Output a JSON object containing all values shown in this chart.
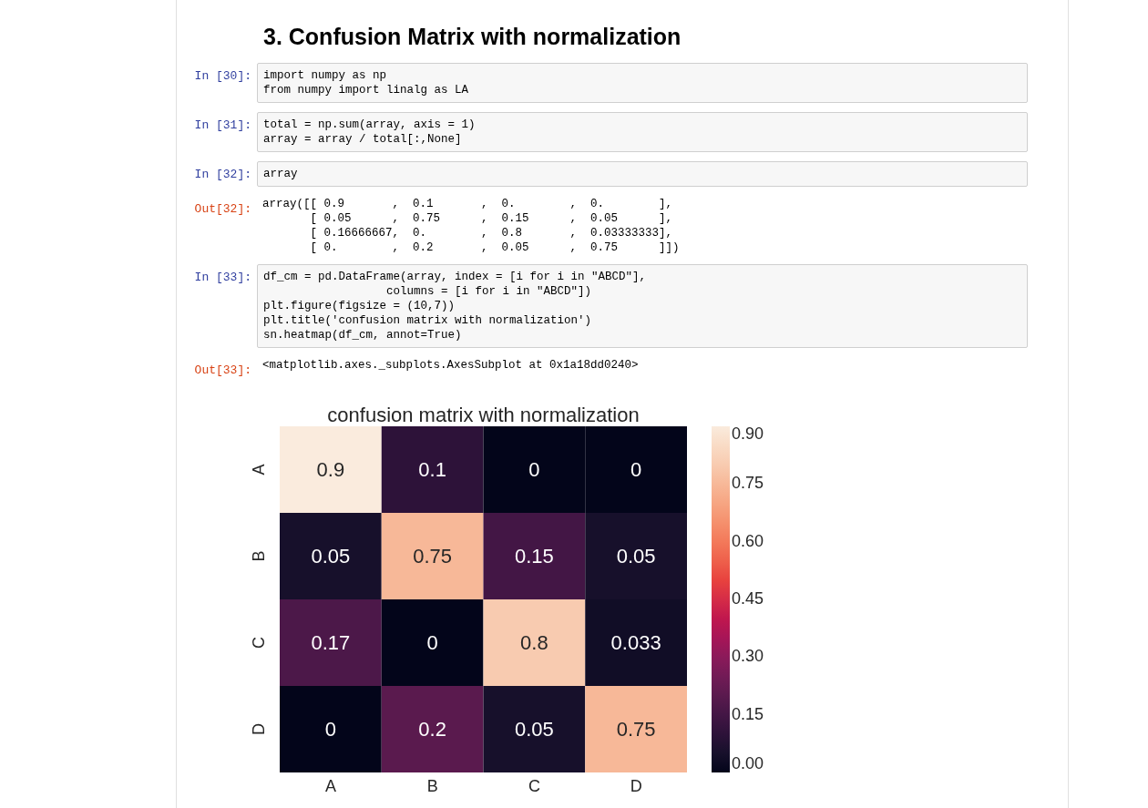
{
  "chart_data": {
    "type": "heatmap",
    "title": "confusion matrix with normalization",
    "categories": [
      "A",
      "B",
      "C",
      "D"
    ],
    "y_categories": [
      "A",
      "B",
      "C",
      "D"
    ],
    "cells": [
      [
        0.9,
        0.1,
        0,
        0
      ],
      [
        0.05,
        0.75,
        0.15,
        0.05
      ],
      [
        0.17,
        0,
        0.8,
        0.033
      ],
      [
        0,
        0.2,
        0.05,
        0.75
      ]
    ],
    "clim": [
      0,
      0.9
    ],
    "cticks": [
      {
        "value": 0,
        "label": "0.00"
      },
      {
        "value": 0.15,
        "label": "0.15"
      },
      {
        "value": 0.3,
        "label": "0.30"
      },
      {
        "value": 0.45,
        "label": "0.45"
      },
      {
        "value": 0.6,
        "label": "0.60"
      },
      {
        "value": 0.75,
        "label": "0.75"
      },
      {
        "value": 0.9,
        "label": "0.90"
      }
    ],
    "data_labels": true,
    "annotations": [
      "3. Confusion Matrix with normalization",
      "In [30]:",
      "import numpy as np\nfrom numpy import linalg as LA",
      "In [31]:",
      "total = np.sum(array, axis = 1)\narray = array / total[:,None]",
      "In [32]:",
      "array",
      "Out[32]:",
      "array([[ 0.9       ,  0.1       ,  0.        ,  0.        ],\n       [ 0.05      ,  0.75      ,  0.15      ,  0.05      ],\n       [ 0.16666667,  0.        ,  0.8       ,  0.03333333],\n       [ 0.        ,  0.2       ,  0.05      ,  0.75      ]])",
      "In [33]:",
      "df_cm = pd.DataFrame(array, index = [i for i in \"ABCD\"],\n                  columns = [i for i in \"ABCD\"])\nplt.figure(figsize = (10,7))\nplt.title('confusion matrix with normalization')\nsn.heatmap(df_cm, annot=True)",
      "Out[33]:",
      "<matplotlib.axes._subplots.AxesSubplot at 0x1a18dd0240>"
    ]
  }
}
